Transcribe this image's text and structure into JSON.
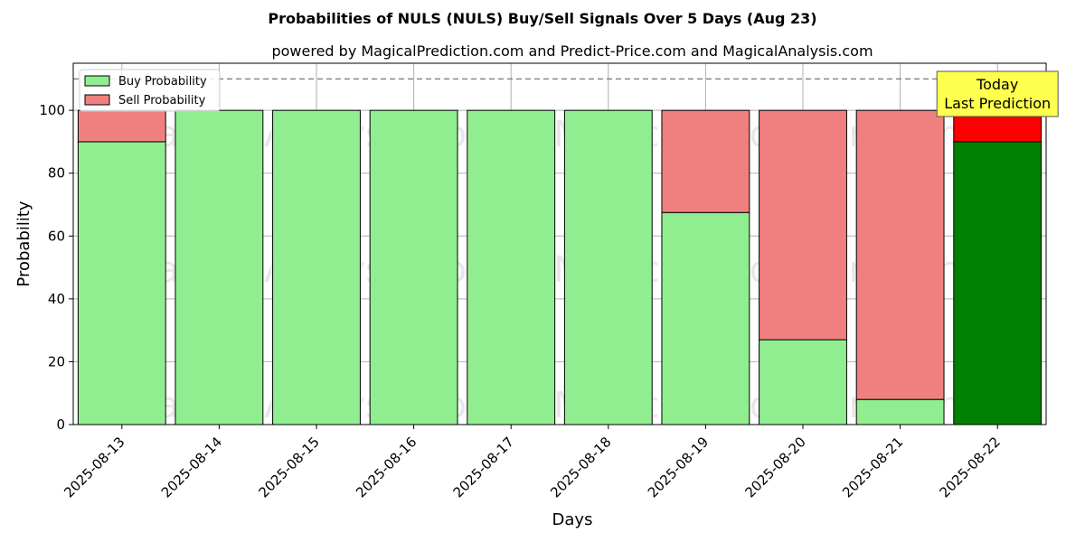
{
  "chart_data": {
    "type": "bar",
    "stacked": true,
    "title": "Probabilities of NULS (NULS) Buy/Sell Signals Over 5 Days (Aug 23)",
    "subtitle": "powered by MagicalPrediction.com and Predict-Price.com and MagicalAnalysis.com",
    "xlabel": "Days",
    "ylabel": "Probability",
    "ylim": [
      0,
      115
    ],
    "yticks": [
      0,
      20,
      40,
      60,
      80,
      100
    ],
    "grid": true,
    "legend_position": "top-left",
    "reference_line": {
      "y": 110,
      "style": "dashed"
    },
    "categories": [
      "2025-08-13",
      "2025-08-14",
      "2025-08-15",
      "2025-08-16",
      "2025-08-17",
      "2025-08-18",
      "2025-08-19",
      "2025-08-20",
      "2025-08-21",
      "2025-08-22"
    ],
    "series": [
      {
        "name": "Buy Probability",
        "color": "#90ee90",
        "highlight_color": "#008000",
        "values": [
          90,
          100,
          100,
          100,
          100,
          100,
          67.5,
          27,
          8,
          90
        ]
      },
      {
        "name": "Sell Probability",
        "color": "#f08080",
        "highlight_color": "#ff0000",
        "values": [
          10,
          0,
          0,
          0,
          0,
          0,
          32.5,
          73,
          92,
          10
        ]
      }
    ],
    "highlight_index": 9,
    "annotation": {
      "lines": [
        "Today",
        "Last Prediction"
      ],
      "background": "#ffff4d"
    },
    "watermarks": [
      "MagicalAnalysis.com",
      "MagicalPrediction.com"
    ]
  }
}
